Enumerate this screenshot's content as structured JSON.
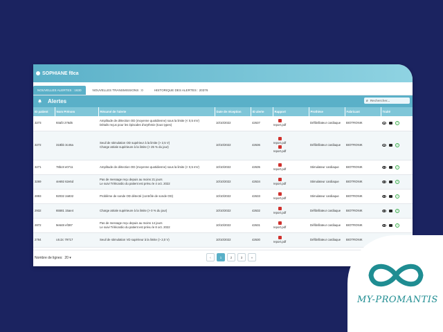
{
  "user": {
    "name": "SOPHIANE f8ca"
  },
  "tabs": [
    {
      "label": "NOUVELLES ALERTES : 1630",
      "active": true
    },
    {
      "label": "NOUVELLES TRANSMISSIONS : 0",
      "active": false
    },
    {
      "label": "HISTORIQUE DES ALERTES : 20376",
      "active": false
    }
  ],
  "alerts": {
    "title": "Alertes",
    "search_placeholder": "Rechercher..."
  },
  "columns": [
    "ID patient",
    "Nom Prénom",
    "Résumé de l'alerte",
    "Date de réception",
    "ID alerte",
    "Rapport",
    "Prothèse",
    "Fabricant",
    "Traité"
  ],
  "rows": [
    {
      "id": "3273",
      "name": "93af3 276d6",
      "summary": [
        "Amplitude de détection OD (moyenne quotidienne) sous la limite (< 0,5 mV)",
        "Détails reçus pour les épisodes d'arythmie (tous types)"
      ],
      "date": "10/10/2022",
      "alert_id": "42637",
      "report": [
        "report.pdf"
      ],
      "device": "Défibrillateur cardiaque",
      "maker": "BIOTRONIK",
      "tall": false
    },
    {
      "id": "3272",
      "name": "318bb 3c46a",
      "summary": [
        "Seuil de stimulation OD supérieur à la limite (> 2,5 V)",
        "Charge atriale supérieure à la limite (> 25 % du jour)"
      ],
      "date": "10/10/2022",
      "alert_id": "42636",
      "report": [
        "report.pdf",
        "report.pdf"
      ],
      "device": "Défibrillateur cardiaque",
      "maker": "BIOTRONIK",
      "tall": true
    },
    {
      "id": "3271",
      "name": "78bc8 e0711",
      "summary": [
        "Amplitude de détection OD (moyenne quotidienne) sous la limite (< 0,5 mV)"
      ],
      "date": "10/10/2022",
      "alert_id": "42635",
      "report": [
        "report.pdf"
      ],
      "device": "Stimulateur cardiaque",
      "maker": "BIOTRONIK",
      "tall": false
    },
    {
      "id": "3269",
      "name": "4e692 62e5d",
      "summary": [
        "Pas de message reçu depuis au moins 21 jours",
        "Le suivi Télécardio du patient est prévu le 4 oct. 2022"
      ],
      "date": "10/10/2022",
      "alert_id": "42634",
      "report": [
        "report.pdf"
      ],
      "device": "Stimulateur cardiaque",
      "maker": "BIOTRONIK",
      "tall": false
    },
    {
      "id": "2893",
      "name": "92032 2a932",
      "summary": [
        "Problème de sonde OD détecté (contrôle de sonde OD)"
      ],
      "date": "10/10/2022",
      "alert_id": "42633",
      "report": [
        "report.pdf"
      ],
      "device": "Stimulateur cardiaque",
      "maker": "BIOTRONIK",
      "tall": false
    },
    {
      "id": "2932",
      "name": "65581 15ae4",
      "summary": [
        "Charge atriale supérieure à la limite (> 0 % du jour)"
      ],
      "date": "10/10/2022",
      "alert_id": "42632",
      "report": [
        "report.pdf"
      ],
      "device": "Défibrillateur cardiaque",
      "maker": "BIOTRONIK",
      "tall": false
    },
    {
      "id": "2872",
      "name": "9e648 ef387",
      "summary": [
        "Pas de message reçu depuis au moins 14 jours",
        "Le suivi Télécardio du patient est prévu le 8 oct. 2022"
      ],
      "date": "10/10/2022",
      "alert_id": "42631",
      "report": [
        "report.pdf"
      ],
      "device": "Défibrillateur cardiaque",
      "maker": "BIOTRONIK",
      "tall": false
    },
    {
      "id": "2784",
      "name": "c4c2c 79717",
      "summary": [
        "Seuil de stimulation VD supérieur à la limite (> 2,0 V)"
      ],
      "date": "10/10/2022",
      "alert_id": "42630",
      "report": [
        "report.pdf"
      ],
      "device": "Défibrillateur cardiaque",
      "maker": "BIOTRONIK",
      "tall": false
    },
    {
      "id": "2724",
      "name": "4f32f 638fd",
      "summary": [
        "Amplitude détection VD (min. quotidien) sous la limite (< 2,0 mV)"
      ],
      "date": "10/10/2022",
      "alert_id": "42629",
      "report": [
        "report.pdf"
      ],
      "device": "Défibrillateur cardiaque",
      "maker": "BIOTRONIK",
      "tall": false
    }
  ],
  "footer": {
    "rows_label": "Nombre de lignes:",
    "rows_value": "20",
    "pages": [
      "1",
      "2",
      "3"
    ],
    "prev": "‹",
    "next": "»"
  },
  "brand": {
    "name": "MY-PROMANTIS",
    "color": "#1f8d92"
  }
}
